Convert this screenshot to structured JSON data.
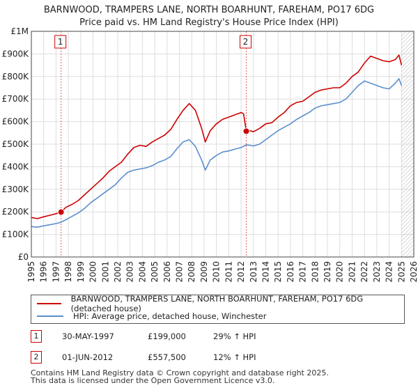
{
  "chart_data": {
    "type": "line",
    "title": "BARNWOOD, TRAMPERS LANE, NORTH BOARHUNT, FAREHAM, PO17 6DG",
    "subtitle": "Price paid vs. HM Land Registry's House Price Index (HPI)",
    "xlim": [
      1995,
      2026
    ],
    "ylim": [
      0,
      1000000
    ],
    "x_ticks": [
      "1995",
      "1996",
      "1997",
      "1998",
      "1999",
      "2000",
      "2001",
      "2002",
      "2003",
      "2004",
      "2005",
      "2006",
      "2007",
      "2008",
      "2009",
      "2010",
      "2011",
      "2012",
      "2013",
      "2014",
      "2015",
      "2016",
      "2017",
      "2018",
      "2019",
      "2020",
      "2021",
      "2022",
      "2023",
      "2024",
      "2025",
      "2026"
    ],
    "y_ticks": [
      {
        "value": 0,
        "label": "£0"
      },
      {
        "value": 100000,
        "label": "£100K"
      },
      {
        "value": 200000,
        "label": "£200K"
      },
      {
        "value": 300000,
        "label": "£300K"
      },
      {
        "value": 400000,
        "label": "£400K"
      },
      {
        "value": 500000,
        "label": "£500K"
      },
      {
        "value": 600000,
        "label": "£600K"
      },
      {
        "value": 700000,
        "label": "£700K"
      },
      {
        "value": 800000,
        "label": "£800K"
      },
      {
        "value": 900000,
        "label": "£900K"
      },
      {
        "value": 1000000,
        "label": "£1M"
      }
    ],
    "grid": true,
    "hatched_region": {
      "x_from": 2025.0,
      "x_to": 2026
    },
    "series": [
      {
        "name": "BARNWOOD, TRAMPERS LANE, NORTH BOARHUNT, FAREHAM, PO17 6DG (detached house)",
        "color": "#cc0000",
        "x": [
          1995.0,
          1995.5,
          1996.0,
          1996.5,
          1997.0,
          1997.41,
          1997.8,
          1998.3,
          1998.8,
          1999.3,
          1999.8,
          2000.3,
          2000.8,
          2001.3,
          2001.8,
          2002.3,
          2002.8,
          2003.3,
          2003.8,
          2004.3,
          2004.8,
          2005.3,
          2005.8,
          2006.3,
          2006.8,
          2007.3,
          2007.8,
          2008.3,
          2008.8,
          2009.1,
          2009.5,
          2010.0,
          2010.5,
          2011.0,
          2011.5,
          2012.0,
          2012.2,
          2012.42,
          2012.7,
          2013.0,
          2013.5,
          2014.0,
          2014.5,
          2015.0,
          2015.5,
          2016.0,
          2016.5,
          2017.0,
          2017.5,
          2018.0,
          2018.5,
          2019.0,
          2019.5,
          2020.0,
          2020.5,
          2021.0,
          2021.5,
          2022.0,
          2022.5,
          2023.0,
          2023.5,
          2024.0,
          2024.5,
          2024.8,
          2025.0
        ],
        "values": [
          175000,
          170000,
          178000,
          185000,
          192000,
          199000,
          220000,
          233000,
          250000,
          275000,
          300000,
          325000,
          350000,
          380000,
          400000,
          420000,
          455000,
          485000,
          495000,
          490000,
          510000,
          525000,
          540000,
          565000,
          610000,
          650000,
          680000,
          650000,
          570000,
          510000,
          560000,
          590000,
          610000,
          620000,
          630000,
          640000,
          635000,
          557500,
          560000,
          555000,
          570000,
          590000,
          595000,
          620000,
          640000,
          670000,
          685000,
          690000,
          710000,
          730000,
          740000,
          745000,
          750000,
          750000,
          770000,
          800000,
          820000,
          860000,
          890000,
          880000,
          870000,
          865000,
          875000,
          895000,
          850000
        ]
      },
      {
        "name": "HPI: Average price, detached house, Winchester",
        "color": "#5b8fcc",
        "x": [
          1995.0,
          1995.5,
          1996.0,
          1996.5,
          1997.0,
          1997.41,
          1997.8,
          1998.3,
          1998.8,
          1999.3,
          1999.8,
          2000.3,
          2000.8,
          2001.3,
          2001.8,
          2002.3,
          2002.8,
          2003.3,
          2003.8,
          2004.3,
          2004.8,
          2005.3,
          2005.8,
          2006.3,
          2006.8,
          2007.3,
          2007.8,
          2008.3,
          2008.8,
          2009.1,
          2009.5,
          2010.0,
          2010.5,
          2011.0,
          2011.5,
          2012.0,
          2012.42,
          2012.7,
          2013.0,
          2013.5,
          2014.0,
          2014.5,
          2015.0,
          2015.5,
          2016.0,
          2016.5,
          2017.0,
          2017.5,
          2018.0,
          2018.5,
          2019.0,
          2019.5,
          2020.0,
          2020.5,
          2021.0,
          2021.5,
          2022.0,
          2022.5,
          2023.0,
          2023.5,
          2024.0,
          2024.5,
          2024.8,
          2025.0
        ],
        "values": [
          135000,
          132000,
          138000,
          143000,
          148000,
          154000,
          165000,
          180000,
          195000,
          215000,
          240000,
          260000,
          280000,
          300000,
          320000,
          350000,
          375000,
          385000,
          390000,
          395000,
          405000,
          420000,
          430000,
          445000,
          480000,
          510000,
          520000,
          490000,
          430000,
          385000,
          430000,
          450000,
          465000,
          470000,
          478000,
          485000,
          497000,
          495000,
          492000,
          500000,
          520000,
          540000,
          560000,
          575000,
          590000,
          610000,
          625000,
          640000,
          660000,
          670000,
          675000,
          680000,
          685000,
          700000,
          730000,
          760000,
          780000,
          770000,
          760000,
          750000,
          745000,
          770000,
          790000,
          760000
        ]
      }
    ],
    "sales": [
      {
        "label": "1",
        "x": 1997.41,
        "value": 199000
      },
      {
        "label": "2",
        "x": 2012.42,
        "value": 557500
      }
    ]
  },
  "legend": {
    "items": [
      {
        "label": "BARNWOOD, TRAMPERS LANE, NORTH BOARHUNT, FAREHAM, PO17 6DG (detached house)",
        "color": "#cc0000"
      },
      {
        "label": "HPI: Average price, detached house, Winchester",
        "color": "#5b8fcc"
      }
    ]
  },
  "sales_table": [
    {
      "badge": "1",
      "date": "30-MAY-1997",
      "price": "£199,000",
      "hpi": "29% ↑ HPI"
    },
    {
      "badge": "2",
      "date": "01-JUN-2012",
      "price": "£557,500",
      "hpi": "12% ↑ HPI"
    }
  ],
  "footer": {
    "line1": "Contains HM Land Registry data © Crown copyright and database right 2025.",
    "line2": "This data is licensed under the Open Government Licence v3.0."
  }
}
